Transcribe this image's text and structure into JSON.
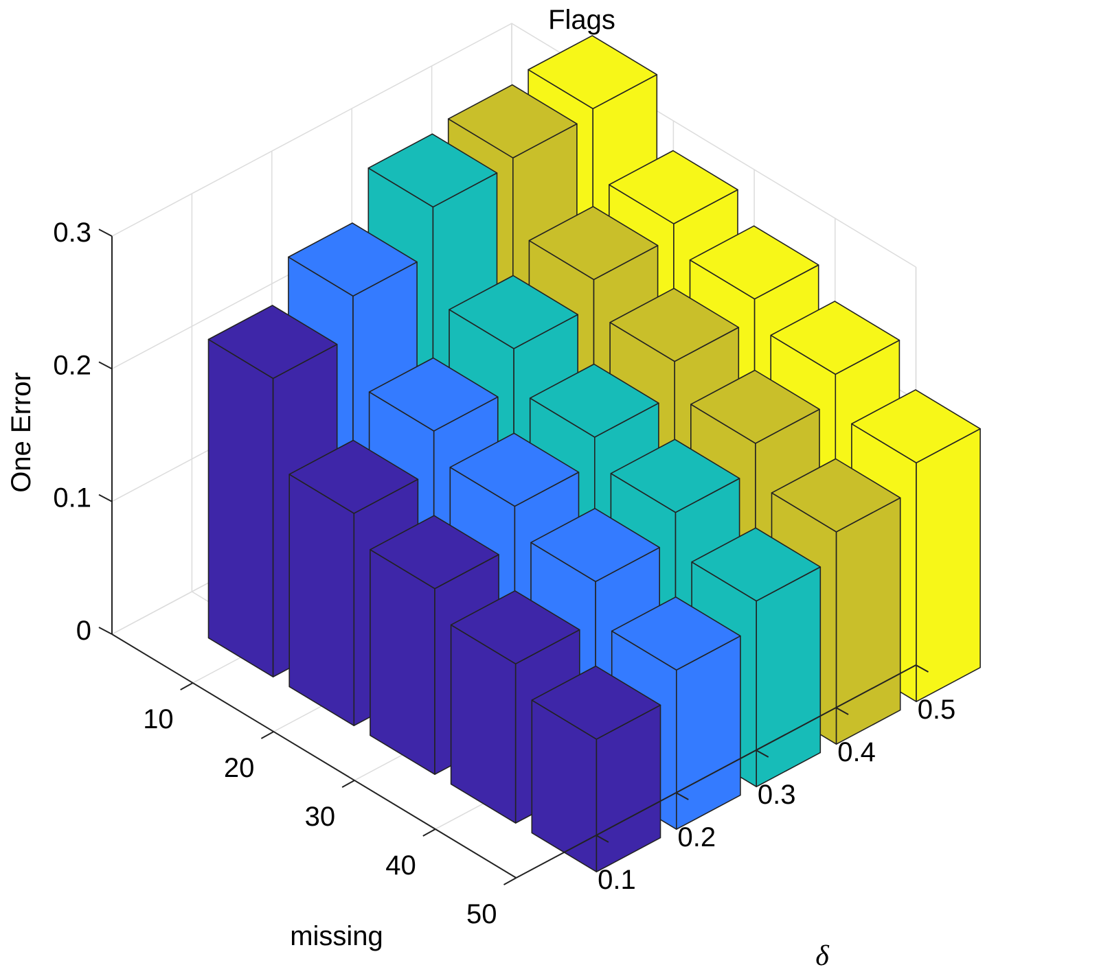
{
  "chart_data": {
    "type": "bar3d",
    "title": "Flags",
    "zlabel": "One Error",
    "xlabel": "missing",
    "ylabel": "δ",
    "missing": [
      "10",
      "20",
      "30",
      "40",
      "50"
    ],
    "delta": [
      "0.1",
      "0.2",
      "0.3",
      "0.4",
      "0.5"
    ],
    "zlim": [
      0,
      0.3
    ],
    "zticks": [
      "0",
      "0.1",
      "0.2",
      "0.3"
    ],
    "values": [
      [
        0.225,
        0.255,
        0.29,
        0.295,
        0.3
      ],
      [
        0.16,
        0.19,
        0.22,
        0.24,
        0.25
      ],
      [
        0.14,
        0.17,
        0.19,
        0.215,
        0.23
      ],
      [
        0.12,
        0.15,
        0.17,
        0.19,
        0.21
      ],
      [
        0.1,
        0.12,
        0.14,
        0.16,
        0.18
      ]
    ],
    "colors": [
      "#3e26a8",
      "#347bff",
      "#17bcb8",
      "#c9bf2a",
      "#f7f718"
    ],
    "grid": true
  }
}
